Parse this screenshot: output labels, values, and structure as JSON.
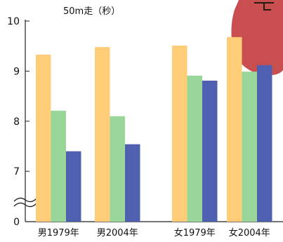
{
  "chart_data": {
    "type": "bar",
    "unit_label": "50m走（秒）",
    "categories": [
      "男1979年",
      "男2004年",
      "女1979年",
      "女2004年"
    ],
    "series": [
      {
        "values": [
          9.33,
          9.48,
          9.51,
          9.68
        ]
      },
      {
        "values": [
          8.21,
          8.1,
          8.91,
          8.99
        ]
      },
      {
        "values": [
          7.4,
          7.54,
          8.81,
          9.12
        ]
      }
    ],
    "y_ticks": [
      "10",
      "9",
      "8",
      "7",
      "0"
    ],
    "ylim": [
      6.6,
      10
    ],
    "axis_break": true,
    "grid": false,
    "legend": "none",
    "colors": [
      "#FFCC77",
      "#99D699",
      "#5060B0"
    ],
    "decoration_color": "#C84E50"
  }
}
